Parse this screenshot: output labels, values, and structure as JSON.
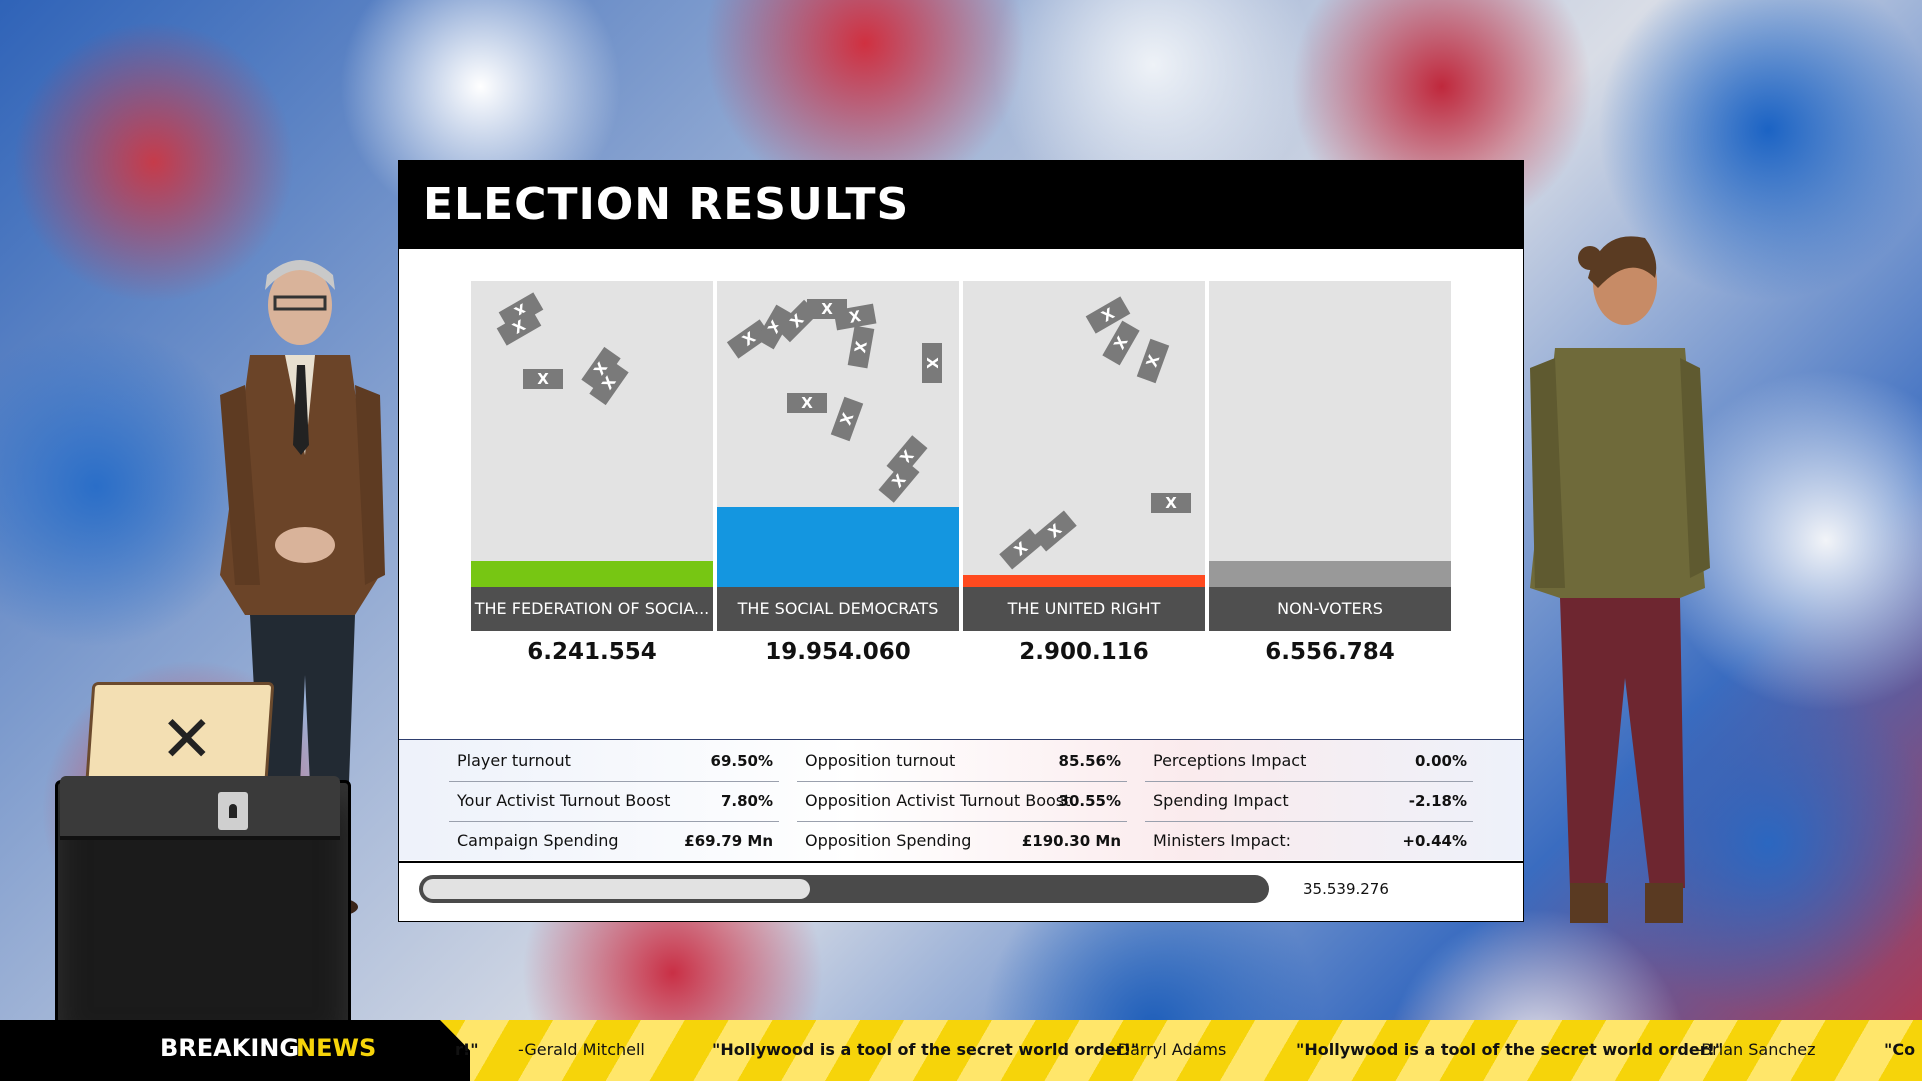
{
  "title": "ELECTION RESULTS",
  "parties": [
    {
      "name": "THE FEDERATION OF SOCIA...",
      "votes": "6.241.554",
      "color": "#77c613",
      "fill": 0.085
    },
    {
      "name": "THE SOCIAL DEMOCRATS",
      "votes": "19.954.060",
      "color": "#1496e0",
      "fill": 0.26
    },
    {
      "name": "THE UNITED RIGHT",
      "votes": "2.900.116",
      "color": "#ff4a1f",
      "fill": 0.04
    },
    {
      "name": "NON-VOTERS",
      "votes": "6.556.784",
      "color": "#999999",
      "fill": 0.085
    }
  ],
  "stats": {
    "player_turnout_label": "Player turnout",
    "player_turnout": "69.50%",
    "opp_turnout_label": "Opposition turnout",
    "opp_turnout": "85.56%",
    "perceptions_label": "Perceptions Impact",
    "perceptions": "0.00%",
    "activist_label": "Your Activist Turnout Boost",
    "activist": "7.80%",
    "opp_activist_label": "Opposition Activist Turnout Boost",
    "opp_activist": "30.55%",
    "spending_impact_label": "Spending Impact",
    "spending_impact": "-2.18%",
    "campaign_label": "Campaign Spending",
    "campaign": "£69.79 Mn",
    "opp_spending_label": "Opposition Spending",
    "opp_spending": "£190.30 Mn",
    "ministers_label": "Ministers Impact:",
    "ministers": "+0.44%"
  },
  "progress": {
    "fraction": 0.46,
    "total": "35.539.276"
  },
  "ballot_mark": "✕",
  "ballot_glyph": "X",
  "ticker": {
    "breaking": "BREAKING",
    "news": "NEWS",
    "items": [
      {
        "text": "r!\"",
        "quote": true
      },
      {
        "text": "-Gerald Mitchell",
        "quote": false
      },
      {
        "text": "\"Hollywood is a tool of the secret world order!\"",
        "quote": true
      },
      {
        "text": "-Darryl Adams",
        "quote": false
      },
      {
        "text": "\"Hollywood is a tool of the secret world order!\"",
        "quote": true
      },
      {
        "text": "-Brian Sanchez",
        "quote": false
      },
      {
        "text": "\"Co",
        "quote": true
      }
    ]
  }
}
